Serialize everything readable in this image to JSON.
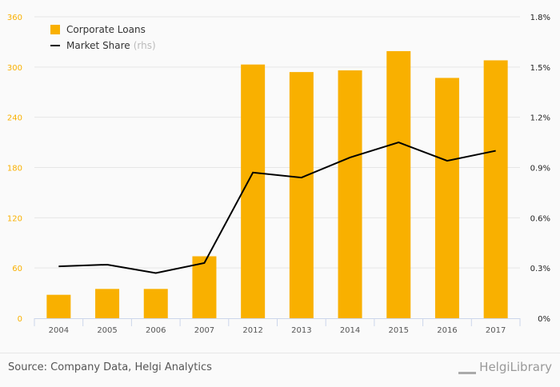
{
  "chart_data": {
    "type": "bar",
    "categories": [
      "2004",
      "2005",
      "2006",
      "2007",
      "2012",
      "2013",
      "2014",
      "2015",
      "2016",
      "2017"
    ],
    "series": [
      {
        "name": "Corporate Loans",
        "type": "bar",
        "axis": "left",
        "color": "#f9b000",
        "values": [
          28,
          35,
          35,
          74,
          303,
          294,
          296,
          319,
          287,
          308
        ]
      },
      {
        "name": "Market Share",
        "type": "line",
        "axis": "right",
        "color": "#000000",
        "values": [
          0.31,
          0.32,
          0.27,
          0.33,
          0.87,
          0.84,
          0.96,
          1.05,
          0.94,
          1.0
        ]
      }
    ],
    "ylim": [
      0,
      360
    ],
    "yticks": [
      "0",
      "60",
      "120",
      "180",
      "240",
      "300",
      "360"
    ],
    "y2lim": [
      0,
      1.8
    ],
    "y2ticks": [
      "0%",
      "0.3%",
      "0.6%",
      "0.9%",
      "1.2%",
      "1.5%",
      "1.8%"
    ],
    "legend": {
      "items": [
        "Corporate Loans",
        "Market Share"
      ],
      "rhs_note": "(rhs)",
      "placement": "top-left"
    },
    "grid": true
  },
  "footer": {
    "source": "Source: Company Data, Helgi Analytics",
    "logo": "HelgiLibrary"
  }
}
